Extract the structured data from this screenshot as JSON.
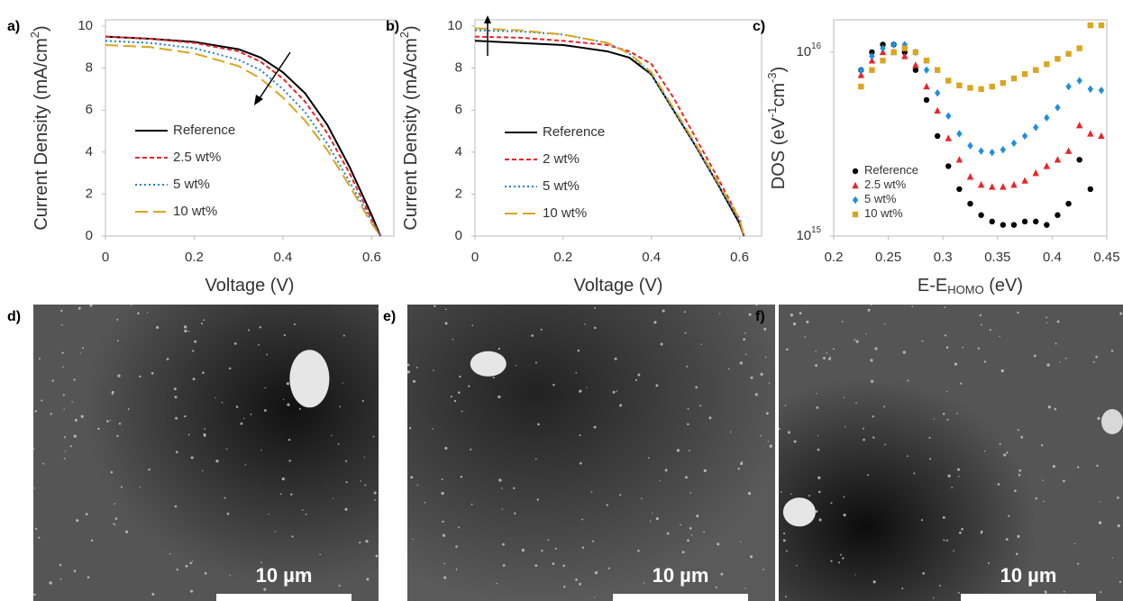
{
  "chart_data": [
    {
      "type": "line",
      "panel": "a)",
      "x_label": "Voltage (V)",
      "y_label": "Current Density (mA/cm^{2})",
      "x": [
        0,
        0.1,
        0.2,
        0.3,
        0.35,
        0.4,
        0.45,
        0.5,
        0.55,
        0.6,
        0.62
      ],
      "series": [
        {
          "name": "Reference",
          "color": "#000000",
          "style": "solid",
          "values": [
            9.5,
            9.4,
            9.25,
            8.9,
            8.5,
            7.8,
            6.8,
            5.3,
            3.3,
            1.0,
            0
          ]
        },
        {
          "name": "2.5 wt%",
          "color": "#e8262a",
          "style": "dashed",
          "values": [
            9.5,
            9.4,
            9.2,
            8.8,
            8.3,
            7.5,
            6.4,
            4.9,
            3.0,
            0.8,
            0
          ]
        },
        {
          "name": "5 wt%",
          "color": "#1f7fd6",
          "style": "dotted",
          "values": [
            9.3,
            9.2,
            8.95,
            8.4,
            7.9,
            7.0,
            5.9,
            4.4,
            2.6,
            0.7,
            0
          ]
        },
        {
          "name": "10 wt%",
          "color": "#daa520",
          "style": "long-dashed",
          "values": [
            9.1,
            9.0,
            8.7,
            8.1,
            7.5,
            6.6,
            5.5,
            4.1,
            2.4,
            0.6,
            0
          ]
        }
      ],
      "xlim": [
        0,
        0.65
      ],
      "xticks": [
        0,
        0.2,
        0.4,
        0.6
      ],
      "ylim": [
        0,
        10.3
      ],
      "yticks": [
        0,
        2,
        4,
        6,
        8,
        10
      ]
    },
    {
      "type": "line",
      "panel": "b)",
      "x_label": "Voltage (V)",
      "y_label": "Current Density (mA/cm^{2})",
      "x": [
        0,
        0.1,
        0.2,
        0.3,
        0.35,
        0.4,
        0.45,
        0.5,
        0.55,
        0.6,
        0.61
      ],
      "series": [
        {
          "name": "Reference",
          "color": "#000000",
          "style": "solid",
          "values": [
            9.3,
            9.2,
            9.1,
            8.8,
            8.5,
            7.7,
            6.0,
            4.3,
            2.5,
            0.6,
            0
          ]
        },
        {
          "name": "2 wt%",
          "color": "#e8262a",
          "style": "dashed",
          "values": [
            9.5,
            9.45,
            9.3,
            9.1,
            8.8,
            8.2,
            6.6,
            4.7,
            2.8,
            0.8,
            0
          ]
        },
        {
          "name": "5 wt%",
          "color": "#1f7fd6",
          "style": "dotted",
          "values": [
            9.8,
            9.75,
            9.6,
            9.2,
            8.7,
            7.7,
            6.0,
            4.3,
            2.5,
            0.7,
            0
          ]
        },
        {
          "name": "10 wt%",
          "color": "#daa520",
          "style": "long-dashed",
          "values": [
            9.9,
            9.8,
            9.6,
            9.2,
            8.7,
            7.8,
            6.1,
            4.4,
            2.6,
            0.8,
            0
          ]
        }
      ],
      "xlim": [
        0,
        0.65
      ],
      "xticks": [
        0,
        0.2,
        0.4,
        0.6
      ],
      "ylim": [
        0,
        10.3
      ],
      "yticks": [
        0,
        2,
        4,
        6,
        8,
        10
      ]
    },
    {
      "type": "scatter",
      "panel": "c)",
      "x_label": "E-E_{HOMO} (eV)",
      "y_label": "DOS (eV^{-1}cm^{-3})",
      "log_y": true,
      "x": [
        0.225,
        0.235,
        0.245,
        0.255,
        0.265,
        0.275,
        0.285,
        0.295,
        0.305,
        0.315,
        0.325,
        0.335,
        0.345,
        0.355,
        0.365,
        0.375,
        0.385,
        0.395,
        0.405,
        0.415,
        0.425,
        0.435,
        0.445
      ],
      "series": [
        {
          "name": "Reference",
          "color": "#000000",
          "marker": "circle",
          "values": [
            8000000000000000.0,
            1e+16,
            1.1e+16,
            1.1e+16,
            1e+16,
            8000000000000000.0,
            5500000000000000.0,
            3500000000000000.0,
            2400000000000000.0,
            1800000000000000.0,
            1500000000000000.0,
            1300000000000000.0,
            1200000000000000.0,
            1150000000000000.0,
            1150000000000000.0,
            1200000000000000.0,
            1200000000000000.0,
            1150000000000000.0,
            1300000000000000.0,
            1500000000000000.0,
            2600000000000000.0,
            1800000000000000.0,
            null
          ]
        },
        {
          "name": "2.5 wt%",
          "color": "#e8262a",
          "marker": "triangle",
          "values": [
            7500000000000000.0,
            9000000000000000.0,
            1e+16,
            1e+16,
            9500000000000000.0,
            8500000000000000.0,
            6500000000000000.0,
            4800000000000000.0,
            3400000000000000.0,
            2600000000000000.0,
            2100000000000000.0,
            1900000000000000.0,
            1850000000000000.0,
            1850000000000000.0,
            1900000000000000.0,
            2000000000000000.0,
            2200000000000000.0,
            2400000000000000.0,
            2600000000000000.0,
            2900000000000000.0,
            4000000000000000.0,
            3600000000000000.0,
            3500000000000000.0
          ]
        },
        {
          "name": "5 wt%",
          "color": "#1f8fe0",
          "marker": "diamond",
          "values": [
            8000000000000000.0,
            9500000000000000.0,
            1.05e+16,
            1.1e+16,
            1.1e+16,
            1e+16,
            8000000000000000.0,
            6000000000000000.0,
            4500000000000000.0,
            3600000000000000.0,
            3100000000000000.0,
            2900000000000000.0,
            2850000000000000.0,
            2950000000000000.0,
            3200000000000000.0,
            3500000000000000.0,
            3900000000000000.0,
            4400000000000000.0,
            5000000000000000.0,
            6500000000000000.0,
            7000000000000000.0,
            6300000000000000.0,
            6200000000000000.0
          ]
        },
        {
          "name": "10 wt%",
          "color": "#daa520",
          "marker": "square",
          "values": [
            6500000000000000.0,
            8000000000000000.0,
            9000000000000000.0,
            1e+16,
            1.05e+16,
            1e+16,
            9000000000000000.0,
            8000000000000000.0,
            7000000000000000.0,
            6600000000000000.0,
            6400000000000000.0,
            6300000000000000.0,
            6500000000000000.0,
            6800000000000000.0,
            7200000000000000.0,
            7600000000000000.0,
            8000000000000000.0,
            8600000000000000.0,
            9200000000000000.0,
            9800000000000000.0,
            1.05e+16,
            1.4e+16,
            1.4e+16
          ]
        }
      ],
      "xlim": [
        0.2,
        0.45
      ],
      "xticks": [
        0.2,
        0.25,
        0.3,
        0.35,
        0.4,
        0.45
      ],
      "ylim": [
        1000000000000000.0,
        1.5e+16
      ],
      "yticks": [
        {
          "value": 1000000000000000.0,
          "label": "10^{15}"
        },
        {
          "value": 1e+16,
          "label": "10^{16}"
        }
      ]
    }
  ],
  "images": [
    {
      "panel": "d)",
      "scale_bar": "10 µm"
    },
    {
      "panel": "e)",
      "scale_bar": "10 µm"
    },
    {
      "panel": "f)",
      "scale_bar": "10 µm"
    }
  ]
}
